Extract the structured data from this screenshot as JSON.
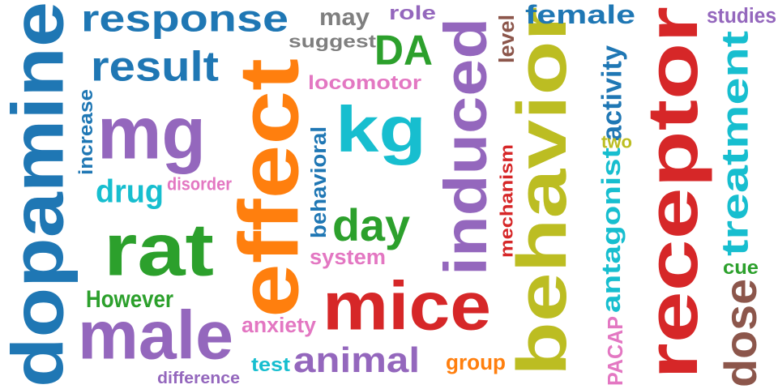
{
  "palette": {
    "blue": "#1f77b4",
    "orange": "#ff7f0e",
    "green": "#2ca02c",
    "red": "#d62728",
    "purple": "#9467bd",
    "brown": "#8c564b",
    "pink": "#e377c2",
    "gray": "#7f7f7f",
    "olive": "#bcbd22",
    "cyan": "#17becf"
  },
  "words": [
    {
      "text": "dopamine",
      "color": "blue"
    },
    {
      "text": "response",
      "color": "blue"
    },
    {
      "text": "result",
      "color": "blue"
    },
    {
      "text": "mg",
      "color": "purple"
    },
    {
      "text": "rat",
      "color": "green"
    },
    {
      "text": "male",
      "color": "purple"
    },
    {
      "text": "effect",
      "color": "orange"
    },
    {
      "text": "kg",
      "color": "cyan"
    },
    {
      "text": "mice",
      "color": "red"
    },
    {
      "text": "induced",
      "color": "purple"
    },
    {
      "text": "behavior",
      "color": "olive"
    },
    {
      "text": "receptor",
      "color": "red"
    },
    {
      "text": "DA",
      "color": "green"
    },
    {
      "text": "may",
      "color": "gray"
    },
    {
      "text": "role",
      "color": "purple"
    },
    {
      "text": "suggest",
      "color": "gray"
    },
    {
      "text": "female",
      "color": "blue"
    },
    {
      "text": "studies",
      "color": "purple"
    },
    {
      "text": "level",
      "color": "brown"
    },
    {
      "text": "locomotor",
      "color": "pink"
    },
    {
      "text": "increase",
      "color": "blue"
    },
    {
      "text": "drug",
      "color": "cyan"
    },
    {
      "text": "disorder",
      "color": "pink"
    },
    {
      "text": "behavioral",
      "color": "blue"
    },
    {
      "text": "day",
      "color": "green"
    },
    {
      "text": "system",
      "color": "pink"
    },
    {
      "text": "mechanism",
      "color": "red"
    },
    {
      "text": "antagonist",
      "color": "cyan"
    },
    {
      "text": "activity",
      "color": "blue"
    },
    {
      "text": "two",
      "color": "olive"
    },
    {
      "text": "treatment",
      "color": "cyan"
    },
    {
      "text": "cue",
      "color": "green"
    },
    {
      "text": "However",
      "color": "green"
    },
    {
      "text": "anxiety",
      "color": "pink"
    },
    {
      "text": "animal",
      "color": "purple"
    },
    {
      "text": "test",
      "color": "cyan"
    },
    {
      "text": "difference",
      "color": "purple"
    },
    {
      "text": "group",
      "color": "orange"
    },
    {
      "text": "PACAP",
      "color": "pink"
    },
    {
      "text": "dose",
      "color": "brown"
    }
  ]
}
